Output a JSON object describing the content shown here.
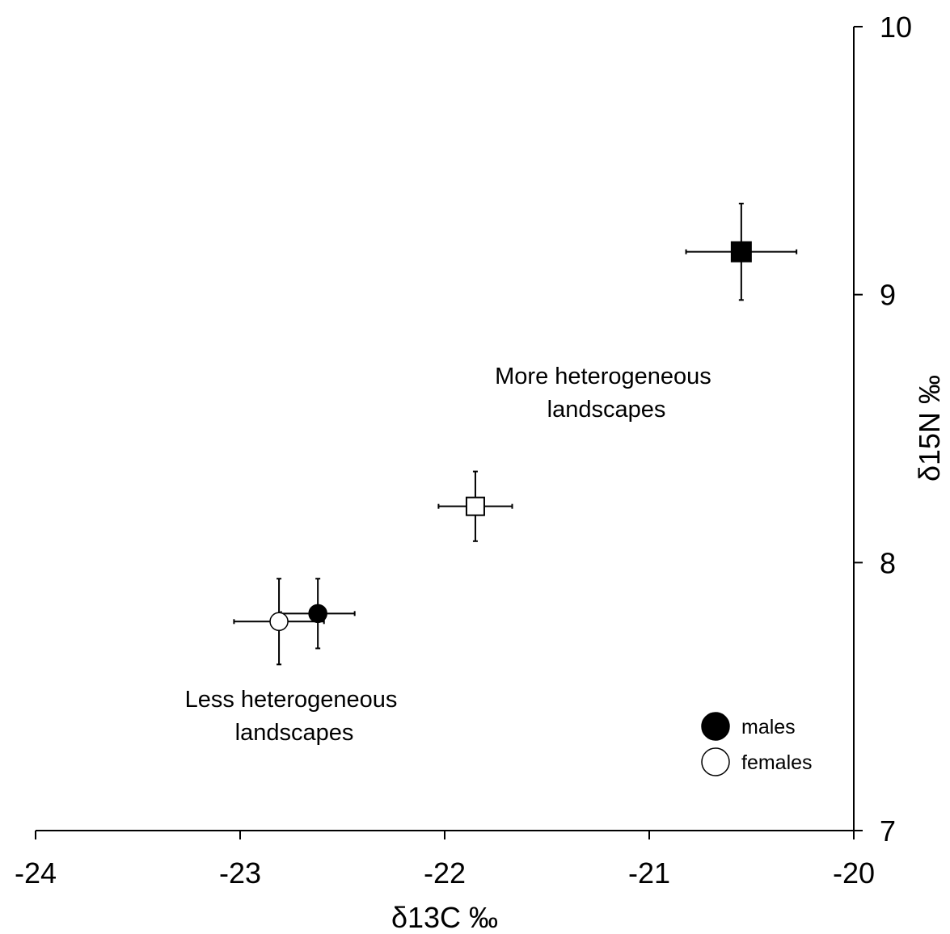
{
  "chart_data": {
    "type": "scatter",
    "title": "",
    "xlabel": "δ13C ‰",
    "ylabel": "δ15N ‰",
    "xlim": [
      -24,
      -20
    ],
    "ylim": [
      7,
      10
    ],
    "xticks": [
      -24,
      -23,
      -22,
      -21,
      -20
    ],
    "yticks": [
      7,
      8,
      9,
      10
    ],
    "xtick_labels": [
      "-24",
      "-23",
      "-22",
      "-21",
      "-20"
    ],
    "ytick_labels": [
      "7",
      "8",
      "9",
      "10"
    ],
    "y_axis_side": "right",
    "grid": false,
    "points": [
      {
        "group": "Less heterogeneous landscapes",
        "sex": "males",
        "marker": "circle",
        "fill": "#000000",
        "x": -22.62,
        "y": 7.81,
        "x_err": 0.18,
        "y_err": 0.13
      },
      {
        "group": "Less heterogeneous landscapes",
        "sex": "females",
        "marker": "circle",
        "fill": "#ffffff",
        "x": -22.81,
        "y": 7.78,
        "x_err": 0.22,
        "y_err": 0.16
      },
      {
        "group": "More heterogeneous landscapes",
        "sex": "males",
        "marker": "square",
        "fill": "#000000",
        "x": -20.55,
        "y": 9.16,
        "x_err": 0.27,
        "y_err": 0.18
      },
      {
        "group": "More heterogeneous landscapes",
        "sex": "females",
        "marker": "square",
        "fill": "#ffffff",
        "x": -21.85,
        "y": 8.21,
        "x_err": 0.18,
        "y_err": 0.13
      }
    ],
    "annotations": [
      {
        "lines": [
          "More heterogeneous",
          "landscapes"
        ]
      },
      {
        "lines": [
          "Less heterogeneous",
          "landscapes"
        ]
      }
    ],
    "legend": {
      "placement": "bottom-right",
      "entries": [
        {
          "label": "males",
          "fill": "#000000"
        },
        {
          "label": "females",
          "fill": "#ffffff"
        }
      ]
    }
  }
}
